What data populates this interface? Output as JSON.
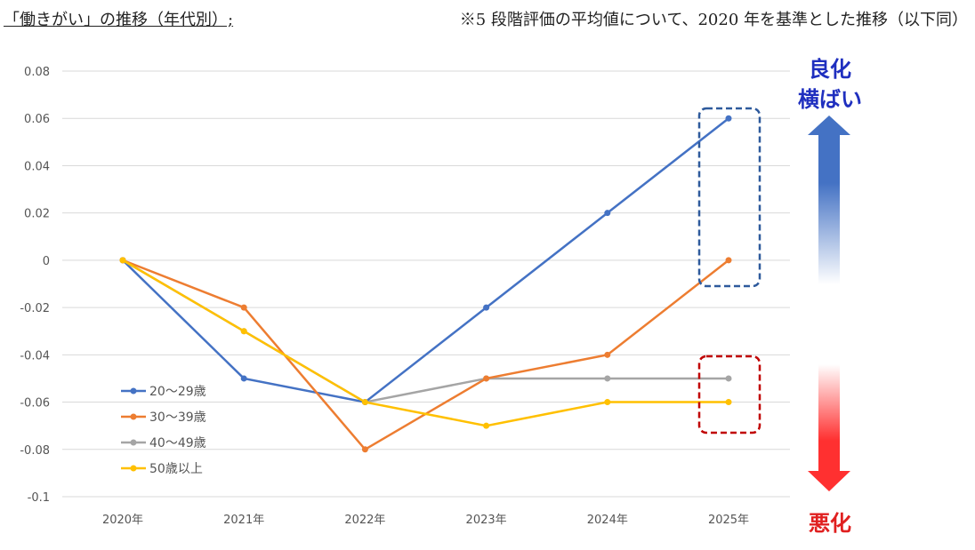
{
  "header": {
    "title": "「働きがい」の推移（年代別）;",
    "note": "※5 段階評価の平均値について、2020 年を基準とした推移（以下同）"
  },
  "side_labels": {
    "improve": "良化",
    "flat": "横ばい",
    "worsen": "悪化",
    "improve_color": "#1f2fbf",
    "worsen_color": "#e02020"
  },
  "chart_data": {
    "type": "line",
    "title": "",
    "xlabel": "",
    "ylabel": "",
    "categories": [
      "2020年",
      "2021年",
      "2022年",
      "2023年",
      "2024年",
      "2025年"
    ],
    "ylim": [
      -0.1,
      0.08
    ],
    "yticks": [
      0.08,
      0.06,
      0.04,
      0.02,
      0,
      -0.02,
      -0.04,
      -0.06,
      -0.08,
      -0.1
    ],
    "ytick_labels": [
      "0.08",
      "0.06",
      "0.04",
      "0.02",
      "0",
      "-0.02",
      "-0.04",
      "-0.06",
      "-0.08",
      "-0.1"
    ],
    "grid": true,
    "legend": "lower-left",
    "series": [
      {
        "name": "20〜29歳",
        "color": "#4472c4",
        "values": [
          0,
          -0.05,
          -0.06,
          -0.02,
          0.02,
          0.06
        ]
      },
      {
        "name": "30〜39歳",
        "color": "#ed7d31",
        "values": [
          0,
          -0.02,
          -0.08,
          -0.05,
          -0.04,
          0
        ]
      },
      {
        "name": "40〜49歳",
        "color": "#a5a5a5",
        "values": [
          0,
          -0.03,
          -0.06,
          -0.05,
          -0.05,
          -0.05
        ]
      },
      {
        "name": "50歳以上",
        "color": "#ffc000",
        "values": [
          0,
          -0.03,
          -0.06,
          -0.07,
          -0.06,
          -0.06
        ]
      }
    ]
  }
}
